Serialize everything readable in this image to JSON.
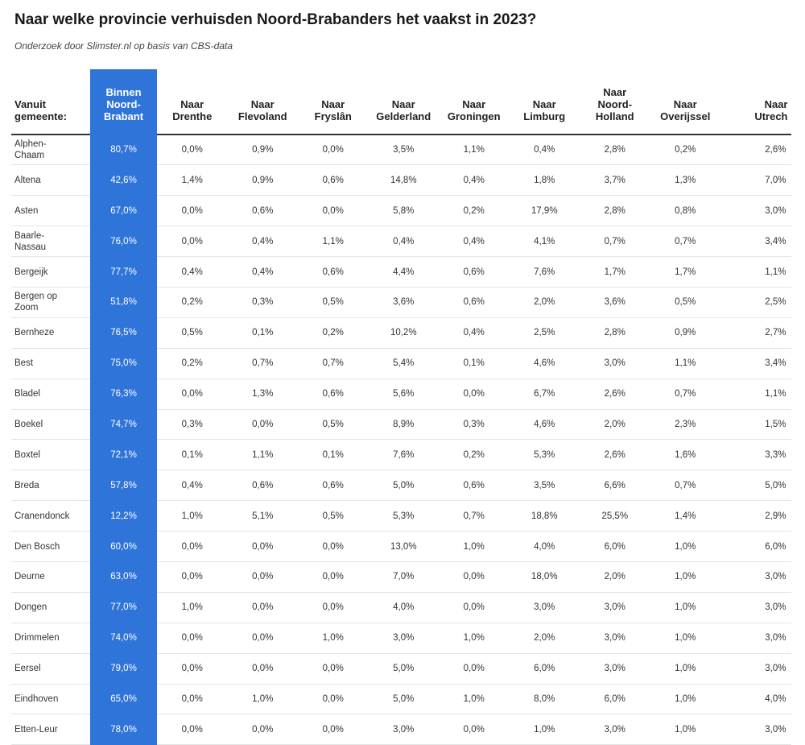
{
  "title": "Naar welke provincie verhuisden Noord-Brabanders het vaakst in 2023?",
  "subtitle": "Onderzoek door Slimster.nl op basis van CBS-data",
  "colors": {
    "highlight": "#2f74d8",
    "highlight_text": "#ffffff"
  },
  "chart_data": {
    "type": "table",
    "columns": [
      [
        "Vanuit",
        "gemeente:"
      ],
      [
        "Binnen",
        "Noord-",
        "Brabant"
      ],
      [
        "Naar",
        "Drenthe"
      ],
      [
        "Naar",
        "Flevoland"
      ],
      [
        "Naar",
        "Fryslân"
      ],
      [
        "Naar",
        "Gelderland"
      ],
      [
        "Naar",
        "Groningen"
      ],
      [
        "Naar",
        "Limburg"
      ],
      [
        "Naar",
        "Noord-",
        "Holland"
      ],
      [
        "Naar",
        "Overijssel"
      ],
      [
        "Naar",
        "Utrech"
      ]
    ],
    "rows": [
      {
        "name": [
          "Alphen-",
          "Chaam"
        ],
        "values": [
          "80,7%",
          "0,0%",
          "0,9%",
          "0,0%",
          "3,5%",
          "1,1%",
          "0,4%",
          "2,8%",
          "0,2%",
          "2,6%"
        ]
      },
      {
        "name": [
          "Altena"
        ],
        "values": [
          "42,6%",
          "1,4%",
          "0,9%",
          "0,6%",
          "14,8%",
          "0,4%",
          "1,8%",
          "3,7%",
          "1,3%",
          "7,0%"
        ]
      },
      {
        "name": [
          "Asten"
        ],
        "values": [
          "67,0%",
          "0,0%",
          "0,6%",
          "0,0%",
          "5,8%",
          "0,2%",
          "17,9%",
          "2,8%",
          "0,8%",
          "3,0%"
        ]
      },
      {
        "name": [
          "Baarle-",
          "Nassau"
        ],
        "values": [
          "76,0%",
          "0,0%",
          "0,4%",
          "1,1%",
          "0,4%",
          "0,4%",
          "4,1%",
          "0,7%",
          "0,7%",
          "3,4%"
        ]
      },
      {
        "name": [
          "Bergeijk"
        ],
        "values": [
          "77,7%",
          "0,4%",
          "0,4%",
          "0,6%",
          "4,4%",
          "0,6%",
          "7,6%",
          "1,7%",
          "1,7%",
          "1,1%"
        ]
      },
      {
        "name": [
          "Bergen op",
          "Zoom"
        ],
        "values": [
          "51,8%",
          "0,2%",
          "0,3%",
          "0,5%",
          "3,6%",
          "0,6%",
          "2,0%",
          "3,6%",
          "0,5%",
          "2,5%"
        ]
      },
      {
        "name": [
          "Bernheze"
        ],
        "values": [
          "76,5%",
          "0,5%",
          "0,1%",
          "0,2%",
          "10,2%",
          "0,4%",
          "2,5%",
          "2,8%",
          "0,9%",
          "2,7%"
        ]
      },
      {
        "name": [
          "Best"
        ],
        "values": [
          "75,0%",
          "0,2%",
          "0,7%",
          "0,7%",
          "5,4%",
          "0,1%",
          "4,6%",
          "3,0%",
          "1,1%",
          "3,4%"
        ]
      },
      {
        "name": [
          "Bladel"
        ],
        "values": [
          "76,3%",
          "0,0%",
          "1,3%",
          "0,6%",
          "5,6%",
          "0,0%",
          "6,7%",
          "2,6%",
          "0,7%",
          "1,1%"
        ]
      },
      {
        "name": [
          "Boekel"
        ],
        "values": [
          "74,7%",
          "0,3%",
          "0,0%",
          "0,5%",
          "8,9%",
          "0,3%",
          "4,6%",
          "2,0%",
          "2,3%",
          "1,5%"
        ]
      },
      {
        "name": [
          "Boxtel"
        ],
        "values": [
          "72,1%",
          "0,1%",
          "1,1%",
          "0,1%",
          "7,6%",
          "0,2%",
          "5,3%",
          "2,6%",
          "1,6%",
          "3,3%"
        ]
      },
      {
        "name": [
          "Breda"
        ],
        "values": [
          "57,8%",
          "0,4%",
          "0,6%",
          "0,6%",
          "5,0%",
          "0,6%",
          "3,5%",
          "6,6%",
          "0,7%",
          "5,0%"
        ]
      },
      {
        "name": [
          "Cranendonck"
        ],
        "values": [
          "12,2%",
          "1,0%",
          "5,1%",
          "0,5%",
          "5,3%",
          "0,7%",
          "18,8%",
          "25,5%",
          "1,4%",
          "2,9%"
        ]
      },
      {
        "name": [
          "Den Bosch"
        ],
        "values": [
          "60,0%",
          "0,0%",
          "0,0%",
          "0,0%",
          "13,0%",
          "1,0%",
          "4,0%",
          "6,0%",
          "1,0%",
          "6,0%"
        ]
      },
      {
        "name": [
          "Deurne"
        ],
        "values": [
          "63,0%",
          "0,0%",
          "0,0%",
          "0,0%",
          "7,0%",
          "0,0%",
          "18,0%",
          "2,0%",
          "1,0%",
          "3,0%"
        ]
      },
      {
        "name": [
          "Dongen"
        ],
        "values": [
          "77,0%",
          "1,0%",
          "0,0%",
          "0,0%",
          "4,0%",
          "0,0%",
          "3,0%",
          "3,0%",
          "1,0%",
          "3,0%"
        ]
      },
      {
        "name": [
          "Drimmelen"
        ],
        "values": [
          "74,0%",
          "0,0%",
          "0,0%",
          "1,0%",
          "3,0%",
          "1,0%",
          "2,0%",
          "3,0%",
          "1,0%",
          "3,0%"
        ]
      },
      {
        "name": [
          "Eersel"
        ],
        "values": [
          "79,0%",
          "0,0%",
          "0,0%",
          "0,0%",
          "5,0%",
          "0,0%",
          "6,0%",
          "3,0%",
          "1,0%",
          "3,0%"
        ]
      },
      {
        "name": [
          "Eindhoven"
        ],
        "values": [
          "65,0%",
          "0,0%",
          "1,0%",
          "0,0%",
          "5,0%",
          "1,0%",
          "8,0%",
          "6,0%",
          "1,0%",
          "4,0%"
        ]
      },
      {
        "name": [
          "Etten-Leur"
        ],
        "values": [
          "78,0%",
          "0,0%",
          "0,0%",
          "0,0%",
          "3,0%",
          "0,0%",
          "1,0%",
          "3,0%",
          "1,0%",
          "3,0%"
        ]
      }
    ]
  }
}
